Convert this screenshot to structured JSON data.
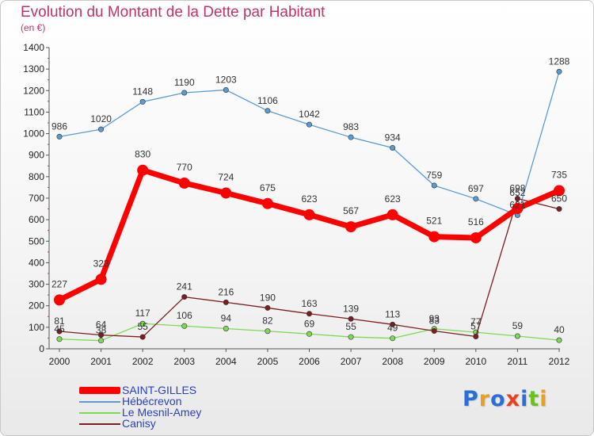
{
  "header": {
    "title": "Evolution du Montant de la Dette par Habitant",
    "subtitle": "(en €)"
  },
  "chart_data": {
    "type": "line",
    "title": "Evolution du Montant de la Dette par Habitant",
    "subtitle": "(en €)",
    "xlabel": "",
    "ylabel": "",
    "x": [
      "2000",
      "2001",
      "2002",
      "2003",
      "2004",
      "2005",
      "2006",
      "2007",
      "2008",
      "2009",
      "2010",
      "2011",
      "2012"
    ],
    "ylim": [
      0,
      1400
    ],
    "yticks": [
      "0",
      "100",
      "200",
      "300",
      "400",
      "500",
      "600",
      "700",
      "800",
      "900",
      "1000",
      "1100",
      "1200",
      "1300",
      "1400"
    ],
    "grid": false,
    "legend_position": "bottom-left",
    "series": [
      {
        "name": "SAINT-GILLES",
        "color": "#ff0000",
        "values": [
          227,
          323,
          830,
          770,
          724,
          675,
          623,
          567,
          623,
          521,
          516,
          652,
          735
        ],
        "labels": [
          "227",
          "323",
          "830",
          "770",
          "724",
          "675",
          "623",
          "567",
          "623",
          "521",
          "516",
          "652",
          "735"
        ]
      },
      {
        "name": "Hébécrevon",
        "color": "#5b9bd5",
        "values": [
          986,
          1020,
          1148,
          1190,
          1203,
          1106,
          1042,
          983,
          934,
          759,
          697,
          621,
          1288
        ],
        "labels": [
          "986",
          "1020",
          "1148",
          "1190",
          "1203",
          "1106",
          "1042",
          "983",
          "934",
          "759",
          "697",
          "621",
          "1288"
        ]
      },
      {
        "name": "Le Mesnil-Amey",
        "color": "#7ed957",
        "values": [
          45,
          38,
          117,
          106,
          94,
          82,
          69,
          55,
          49,
          93,
          77,
          59,
          40
        ],
        "labels": [
          "45",
          "38",
          "117",
          "106",
          "94",
          "82",
          "69",
          "55",
          "49",
          "93",
          "77",
          "59",
          "40"
        ]
      },
      {
        "name": "Canisy",
        "color": "#7a1f1f",
        "values": [
          81,
          64,
          55,
          241,
          216,
          190,
          163,
          139,
          113,
          83,
          57,
          698,
          650
        ],
        "labels": [
          "81",
          "64",
          "55",
          "241",
          "216",
          "190",
          "163",
          "139",
          "113",
          "83",
          "57",
          "698",
          "650"
        ]
      }
    ]
  },
  "logo": {
    "text": "Proxiti"
  }
}
